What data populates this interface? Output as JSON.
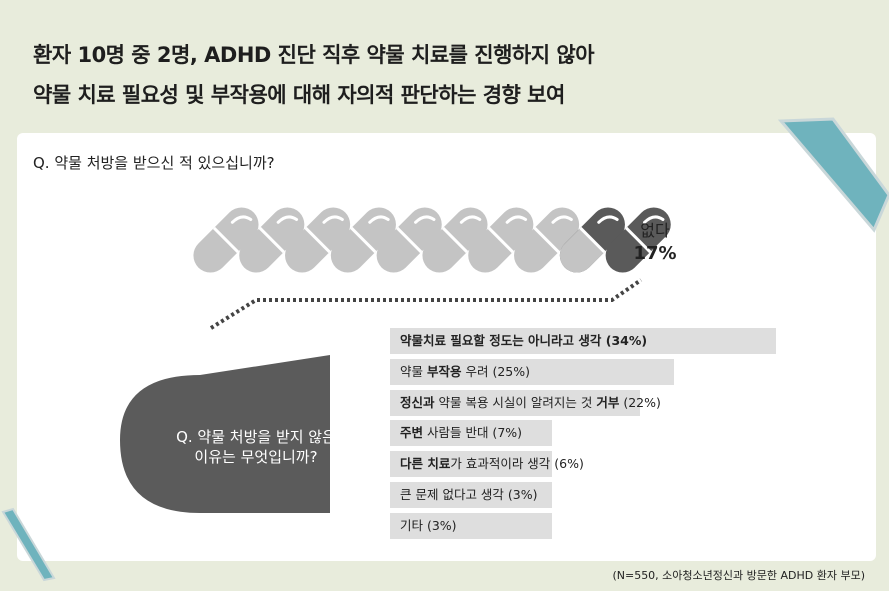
{
  "headline": {
    "line1": "환자 10명 중 2명, ADHD 진단 직후 약물 치료를 진행하지 않아",
    "line2": "약물 치료 필요성 및 부작용에 대해 자의적 판단하는 경향 보여"
  },
  "question1": "Q. 약물 처방을 받으신 적 있으십니까?",
  "question2": "Q. 약물 처방을 받지 않은 이유는 무엇입니까?",
  "source": "(N=550, 소아청소년정신과 방문한 ADHD 환자 부모)",
  "colors": {
    "background": "#e8ecdc",
    "teal": "#6fb3bd",
    "pill_light": "#c4c4c4",
    "pill_dark": "#5a5a5a",
    "bar": "#dedede"
  },
  "chart_data": [
    {
      "type": "pictogram",
      "title": "Q. 약물 처방을 받으신 적 있으십니까?",
      "icons_total": 10,
      "highlighted_label": "없다",
      "highlighted_value": 17,
      "highlighted_value_label": "17%"
    },
    {
      "type": "bar",
      "orientation": "horizontal",
      "title": "Q. 약물 처방을 받지 않은 이유는 무엇입니까?",
      "categories": [
        "약물치료 필요할 정도는 아니라고 생각",
        "약물 부작용 우려",
        "정신과 약물 복용 시실이 알려지는 것 거부",
        "주변 사람들 반대",
        "다른 치료가 효과적이라 생각",
        "큰 문제 없다고 생각",
        "기타"
      ],
      "values": [
        34,
        25,
        22,
        7,
        6,
        3,
        3
      ],
      "value_labels": [
        "(34%)",
        "(25%)",
        "(22%)",
        "(7%)",
        "(6%)",
        "(3%)",
        "(3%)"
      ],
      "label_parts": [
        [
          {
            "t": "약물치료 필요할 정도는 아니라고 생각 (34%)",
            "b": true
          }
        ],
        [
          {
            "t": "약물 ",
            "b": false
          },
          {
            "t": "부작용",
            "b": true
          },
          {
            "t": " 우려 (25%)",
            "b": false
          }
        ],
        [
          {
            "t": "정신과",
            "b": true
          },
          {
            "t": " 약물 복용 시실이 알려지는 것 ",
            "b": false
          },
          {
            "t": "거부",
            "b": true
          },
          {
            "t": " (22%)",
            "b": false
          }
        ],
        [
          {
            "t": "주변",
            "b": true
          },
          {
            "t": " 사람들 반대 (7%)",
            "b": false
          }
        ],
        [
          {
            "t": "다른 치료",
            "b": true
          },
          {
            "t": "가 효과적이라 생각 (6%)",
            "b": false
          }
        ],
        [
          {
            "t": "큰 문제 없다고 생각 (3%)",
            "b": false
          }
        ],
        [
          {
            "t": "기타 (3%)",
            "b": false
          }
        ]
      ]
    }
  ]
}
